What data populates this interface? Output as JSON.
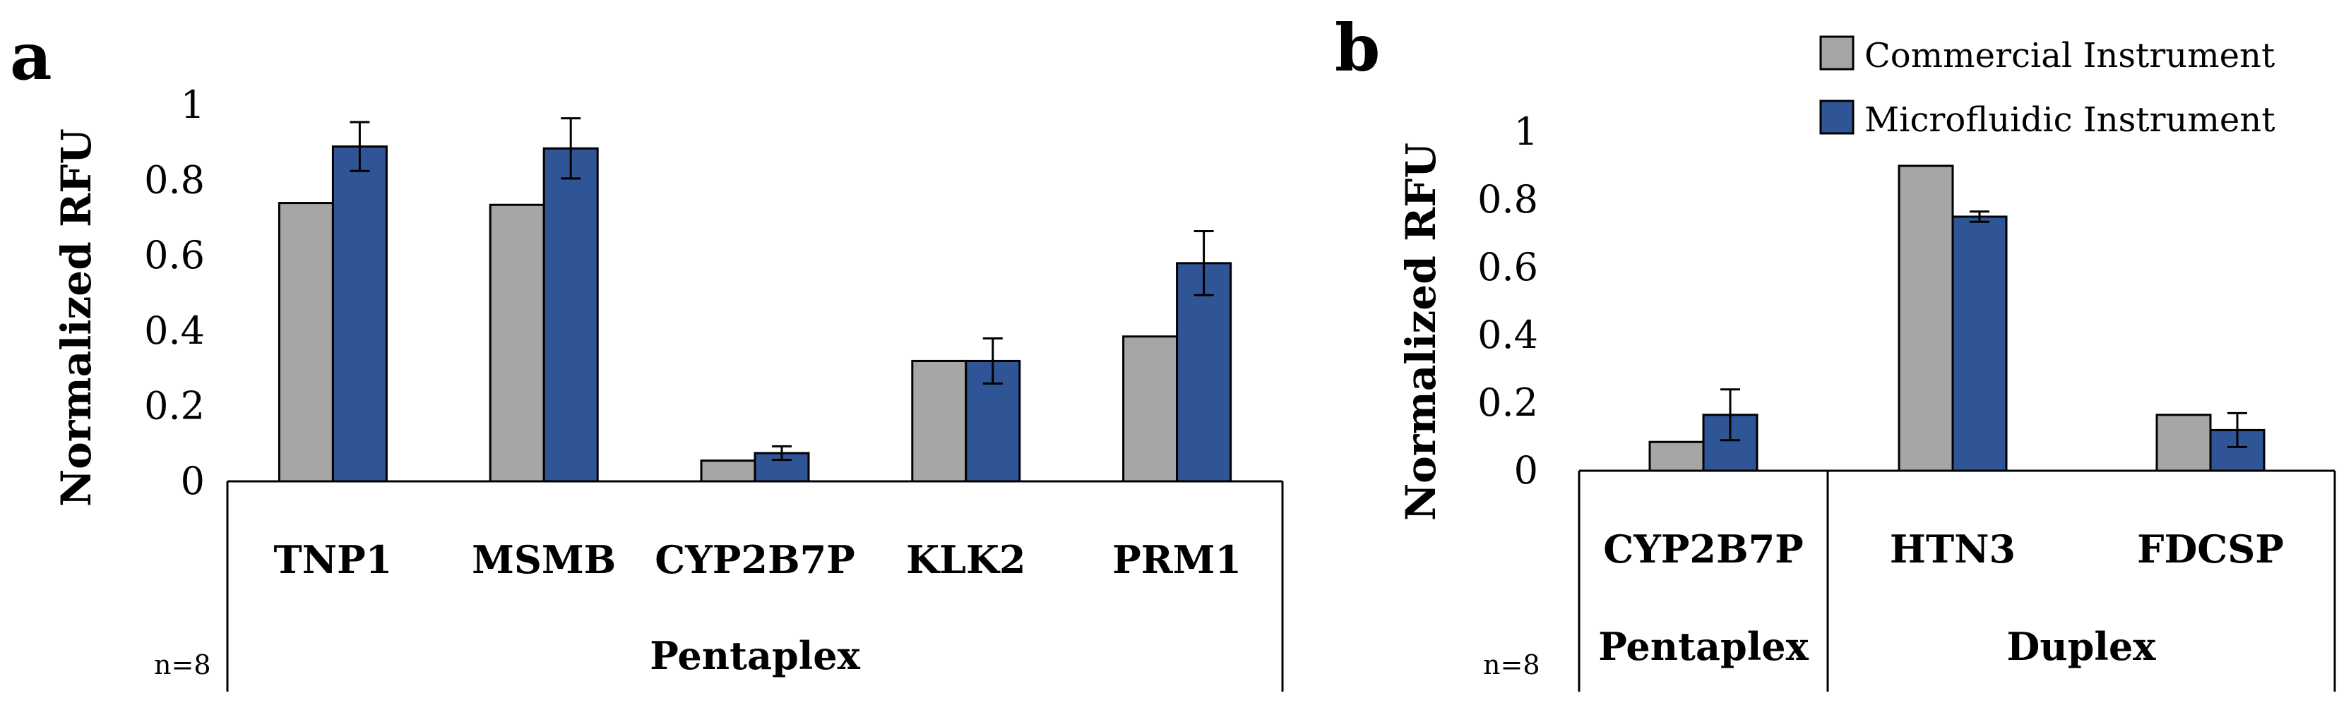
{
  "legend": {
    "commercial": "Commercial Instrument",
    "microfluidic": "Microfluidic Instrument"
  },
  "colors": {
    "commercial": "#a6a6a6",
    "microfluidic": "#2f5597",
    "error": "#000000"
  },
  "chart_data": [
    {
      "panel": "a",
      "type": "bar",
      "ylabel": "Normalized RFU",
      "ylim": [
        0,
        1
      ],
      "yticks": [
        "0",
        "0.2",
        "0.4",
        "0.6",
        "0.8",
        "1"
      ],
      "categories": [
        "TNP1",
        "MSMB",
        "CYP2B7P",
        "KLK2",
        "PRM1"
      ],
      "groups": [
        {
          "label": "Pentaplex",
          "span": 5
        }
      ],
      "note": "n=8",
      "series": [
        {
          "name": "Commercial Instrument",
          "values": [
            0.74,
            0.735,
            0.055,
            0.32,
            0.385
          ]
        },
        {
          "name": "Microfluidic Instrument",
          "values": [
            0.89,
            0.885,
            0.075,
            0.32,
            0.58
          ],
          "errors": [
            0.065,
            0.08,
            0.018,
            0.06,
            0.085
          ]
        }
      ]
    },
    {
      "panel": "b",
      "type": "bar",
      "ylabel": "Normalized RFU",
      "ylim": [
        0,
        1
      ],
      "yticks": [
        "0",
        "0.2",
        "0.4",
        "0.6",
        "0.8",
        "1"
      ],
      "categories": [
        "CYP2B7P",
        "HTN3",
        "FDCSP"
      ],
      "groups": [
        {
          "label": "Pentaplex",
          "span": 1
        },
        {
          "label": "Duplex",
          "span": 2
        }
      ],
      "note": "n=8",
      "series": [
        {
          "name": "Commercial Instrument",
          "values": [
            0.085,
            0.9,
            0.165
          ]
        },
        {
          "name": "Microfluidic Instrument",
          "values": [
            0.165,
            0.75,
            0.12
          ],
          "errors": [
            0.075,
            0.015,
            0.05
          ]
        }
      ]
    }
  ]
}
